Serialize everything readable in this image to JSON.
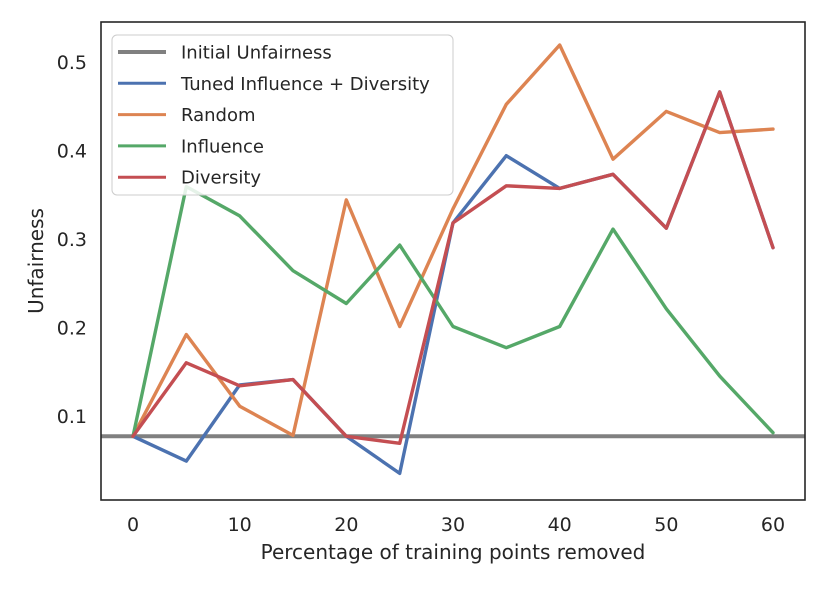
{
  "chart_data": {
    "type": "line",
    "title": "",
    "xlabel": "Percentage of training points removed",
    "ylabel": "Unfairness",
    "xlim": [
      -3,
      63
    ],
    "ylim": [
      0.005,
      0.545
    ],
    "xticks": [
      0,
      10,
      20,
      30,
      40,
      50,
      60
    ],
    "xtick_labels": [
      "0",
      "10",
      "20",
      "30",
      "40",
      "50",
      "60"
    ],
    "yticks": [
      0.1,
      0.2,
      0.3,
      0.4,
      0.5
    ],
    "ytick_labels": [
      "0.1",
      "0.2",
      "0.3",
      "0.4",
      "0.5"
    ],
    "grid": false,
    "legend_position": "top-left",
    "baseline": {
      "name": "Initial Unfairness",
      "value": 0.077,
      "color": "#808080"
    },
    "x": [
      0,
      5,
      10,
      15,
      20,
      25,
      30,
      35,
      40,
      45,
      50,
      55,
      60
    ],
    "series": [
      {
        "name": "Tuned Influence + Diversity",
        "color": "#4c72b0",
        "values": [
          0.077,
          0.049,
          0.135,
          0.141,
          0.077,
          0.035,
          0.318,
          0.394,
          0.357,
          0.373,
          0.312,
          0.466,
          0.29
        ]
      },
      {
        "name": "Random",
        "color": "#dd8452",
        "values": [
          0.077,
          0.192,
          0.111,
          0.078,
          0.344,
          0.201,
          0.334,
          0.452,
          0.519,
          0.39,
          0.444,
          0.42,
          0.424
        ]
      },
      {
        "name": "Influence",
        "color": "#55a868",
        "values": [
          0.077,
          0.359,
          0.326,
          0.264,
          0.227,
          0.293,
          0.201,
          0.177,
          0.201,
          0.311,
          0.221,
          0.145,
          0.081
        ]
      },
      {
        "name": "Diversity",
        "color": "#c44e52",
        "values": [
          0.077,
          0.16,
          0.134,
          0.141,
          0.077,
          0.069,
          0.318,
          0.36,
          0.357,
          0.373,
          0.312,
          0.466,
          0.29
        ]
      }
    ]
  }
}
